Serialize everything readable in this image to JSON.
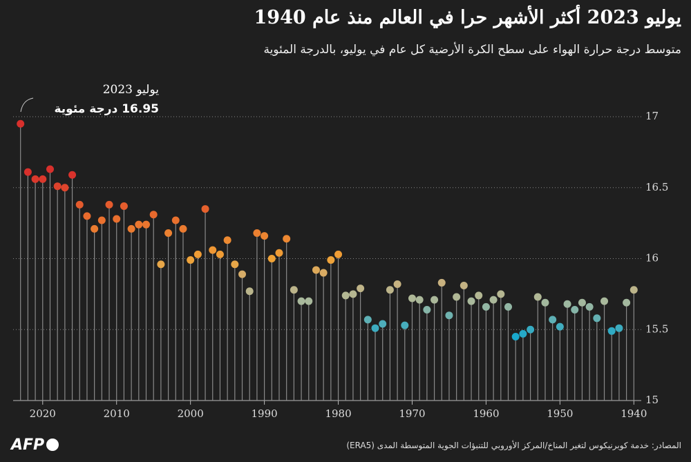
{
  "chart_data": {
    "type": "lollipop",
    "title": "يوليو 2023 أكثر الأشهر حرا في العالم منذ عام 1940",
    "subtitle": "متوسط درجة حرارة الهواء على سطح الكرة الأرضية كل عام في يوليو، بالدرجة المئوية",
    "annotation": [
      "يوليو 2023",
      "16.95 درجة مئوية"
    ],
    "source": "المصادر: خدمة كوبرنيكوس لتغير المناخ/المركز الأوروبي للتنبؤات الجوية المتوسطة المدى (ERA5)",
    "logo": "AFP",
    "x": [
      2023,
      2022,
      2021,
      2020,
      2019,
      2018,
      2017,
      2016,
      2015,
      2014,
      2013,
      2012,
      2011,
      2010,
      2009,
      2008,
      2007,
      2006,
      2005,
      2004,
      2003,
      2002,
      2001,
      2000,
      1999,
      1998,
      1997,
      1996,
      1995,
      1994,
      1993,
      1992,
      1991,
      1990,
      1989,
      1988,
      1987,
      1986,
      1985,
      1984,
      1983,
      1982,
      1981,
      1980,
      1979,
      1978,
      1977,
      1976,
      1975,
      1974,
      1973,
      1972,
      1971,
      1970,
      1969,
      1968,
      1967,
      1966,
      1965,
      1964,
      1963,
      1962,
      1961,
      1960,
      1959,
      1958,
      1957,
      1956,
      1955,
      1954,
      1953,
      1952,
      1951,
      1950,
      1949,
      1948,
      1947,
      1946,
      1945,
      1944,
      1943,
      1942,
      1941,
      1940
    ],
    "values": [
      16.95,
      16.61,
      16.56,
      16.56,
      16.63,
      16.51,
      16.5,
      16.59,
      16.38,
      16.3,
      16.21,
      16.27,
      16.38,
      16.28,
      16.37,
      16.21,
      16.24,
      16.24,
      16.31,
      15.96,
      16.18,
      16.27,
      16.21,
      15.99,
      16.03,
      16.35,
      16.06,
      16.03,
      16.13,
      15.96,
      15.89,
      15.77,
      16.18,
      16.16,
      16.0,
      16.04,
      16.14,
      15.78,
      15.7,
      15.7,
      15.92,
      15.9,
      15.99,
      16.03,
      15.74,
      15.75,
      15.79,
      15.57,
      15.51,
      15.54,
      15.78,
      15.82,
      15.53,
      15.72,
      15.71,
      15.64,
      15.71,
      15.83,
      15.6,
      15.73,
      15.81,
      15.7,
      15.74,
      15.66,
      15.71,
      15.75,
      15.66,
      15.45,
      15.47,
      15.5,
      15.73,
      15.69,
      15.57,
      15.52,
      15.68,
      15.64,
      15.69,
      15.66,
      15.58,
      15.7,
      15.49,
      15.51,
      15.69,
      15.78
    ],
    "colorscale": [
      {
        "value": 15.45,
        "color": "#19a8cc"
      },
      {
        "value": 15.7,
        "color": "#a9b99c"
      },
      {
        "value": 15.85,
        "color": "#cdb07a"
      },
      {
        "value": 16.0,
        "color": "#f0a236"
      },
      {
        "value": 16.3,
        "color": "#e96b2d"
      },
      {
        "value": 16.6,
        "color": "#d8302c"
      }
    ],
    "stem_color": "#8a8a8a",
    "xlim": [
      2024,
      1939
    ],
    "xticks": [
      2020,
      2010,
      2000,
      1990,
      1980,
      1970,
      1960,
      1950,
      1940
    ],
    "ylim": [
      15,
      17
    ],
    "yticks": [
      15,
      15.5,
      16,
      16.5,
      17
    ],
    "grid": true
  }
}
